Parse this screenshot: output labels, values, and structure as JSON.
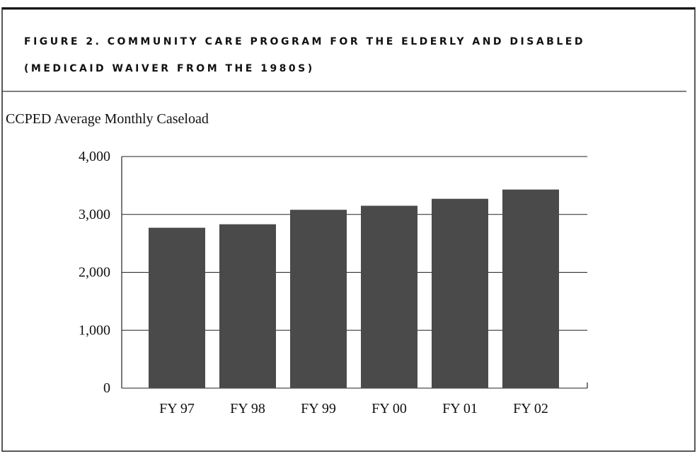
{
  "chart_data": {
    "type": "bar",
    "title": "FIGURE 2. COMMUNITY CARE PROGRAM FOR THE ELDERLY AND DISABLED",
    "subtitle": "(MEDICAID WAIVER FROM THE 1980S)",
    "ylabel": "CCPED Average Monthly Caseload",
    "categories": [
      "FY 97",
      "FY 98",
      "FY 99",
      "FY 00",
      "FY 01",
      "FY 02"
    ],
    "values": [
      2770,
      2830,
      3080,
      3150,
      3270,
      3430
    ],
    "color": "#4a4a4a",
    "ylim": [
      0,
      4000
    ],
    "yticks": [
      0,
      {
        "value": 1000,
        "label": "1,000"
      },
      {
        "value": 2000,
        "label": "2,000"
      },
      {
        "value": 3000,
        "label": "3,000"
      },
      {
        "value": 4000,
        "label": "4,000"
      }
    ],
    "grid": true
  }
}
